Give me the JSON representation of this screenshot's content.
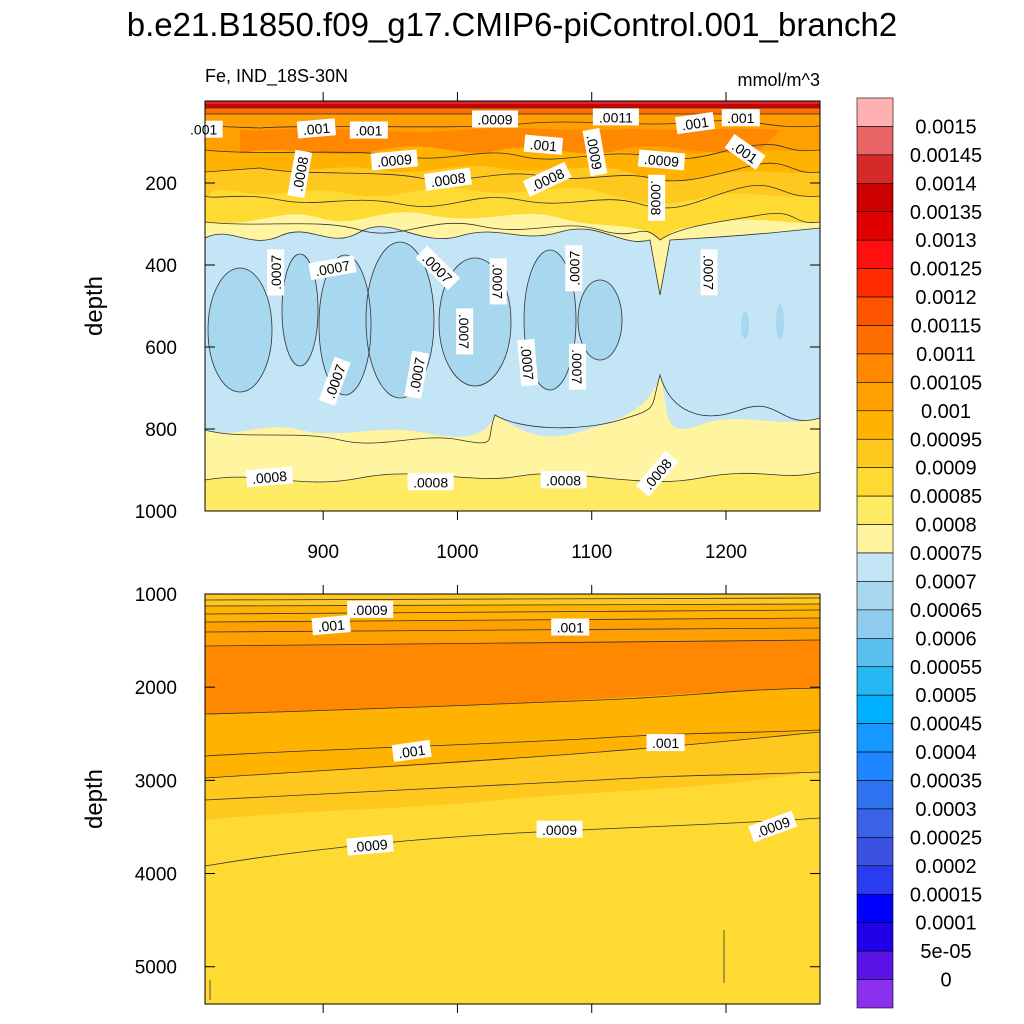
{
  "chart_data": {
    "type": "contour",
    "title": "b.e21.B1850.f09_g17.CMIP6-piControl.001_branch2",
    "variable_label": "Fe, IND_18S-30N",
    "units_label": "mmol/m^3",
    "x_ticks": [
      900,
      1000,
      1100,
      1200
    ],
    "x_range": [
      812,
      1270
    ],
    "panels": [
      {
        "name": "upper",
        "ylabel": "depth",
        "y_range": [
          0,
          1000
        ],
        "y_ticks": [
          200,
          400,
          600,
          800,
          1000
        ],
        "contour_labels": [
          {
            "text": ".0009",
            "x": 1028,
            "y": 45,
            "rot": 0
          },
          {
            "text": ".0011",
            "x": 1118,
            "y": 40,
            "rot": 0
          },
          {
            "text": ".001",
            "x": 1211,
            "y": 42,
            "rot": 0
          },
          {
            "text": ".001",
            "x": 1177,
            "y": 55,
            "rot": -8
          },
          {
            "text": ".001",
            "x": 811,
            "y": 70,
            "rot": 0
          },
          {
            "text": ".001",
            "x": 895,
            "y": 68,
            "rot": -5
          },
          {
            "text": ".001",
            "x": 934,
            "y": 72,
            "rot": 0
          },
          {
            "text": ".001",
            "x": 1064,
            "y": 108,
            "rot": 5
          },
          {
            "text": ".001",
            "x": 1214,
            "y": 125,
            "rot": 35
          },
          {
            "text": ".0009",
            "x": 1102,
            "y": 125,
            "rot": 80
          },
          {
            "text": ".0009",
            "x": 953,
            "y": 145,
            "rot": -5
          },
          {
            "text": ".0009",
            "x": 1152,
            "y": 145,
            "rot": 5
          },
          {
            "text": ".0008",
            "x": 883,
            "y": 178,
            "rot": -80
          },
          {
            "text": ".0008",
            "x": 993,
            "y": 192,
            "rot": -8
          },
          {
            "text": ".0008",
            "x": 1067,
            "y": 192,
            "rot": -25
          },
          {
            "text": ".0008",
            "x": 1148,
            "y": 236,
            "rot": 90
          },
          {
            "text": ".0007",
            "x": 865,
            "y": 418,
            "rot": -90
          },
          {
            "text": ".0007",
            "x": 907,
            "y": 408,
            "rot": -10
          },
          {
            "text": ".0007",
            "x": 985,
            "y": 408,
            "rot": 45
          },
          {
            "text": ".0007",
            "x": 1030,
            "y": 440,
            "rot": 90
          },
          {
            "text": ".0007",
            "x": 1087,
            "y": 408,
            "rot": -90
          },
          {
            "text": ".0007",
            "x": 1187,
            "y": 418,
            "rot": 90
          },
          {
            "text": ".0007",
            "x": 1005,
            "y": 562,
            "rot": 90
          },
          {
            "text": ".0007",
            "x": 1052,
            "y": 638,
            "rot": 85
          },
          {
            "text": ".0007",
            "x": 1089,
            "y": 648,
            "rot": 90
          },
          {
            "text": ".0007",
            "x": 970,
            "y": 668,
            "rot": -80
          },
          {
            "text": ".0007",
            "x": 909,
            "y": 684,
            "rot": -70
          },
          {
            "text": ".0008",
            "x": 860,
            "y": 918,
            "rot": -5
          },
          {
            "text": ".0008",
            "x": 980,
            "y": 930,
            "rot": 0
          },
          {
            "text": ".0008",
            "x": 1079,
            "y": 925,
            "rot": 0
          },
          {
            "text": ".0008",
            "x": 1149,
            "y": 910,
            "rot": -50
          }
        ]
      },
      {
        "name": "lower",
        "ylabel": "depth",
        "y_range": [
          1000,
          5400
        ],
        "y_ticks": [
          1000,
          2000,
          3000,
          4000,
          5000
        ],
        "contour_labels": [
          {
            "text": ".0009",
            "x": 935,
            "y": 1170,
            "rot": 0
          },
          {
            "text": ".001",
            "x": 906,
            "y": 1340,
            "rot": -5
          },
          {
            "text": ".001",
            "x": 1084,
            "y": 1360,
            "rot": 0
          },
          {
            "text": ".001",
            "x": 966,
            "y": 2690,
            "rot": -8
          },
          {
            "text": ".001",
            "x": 1155,
            "y": 2600,
            "rot": 0
          },
          {
            "text": ".0009",
            "x": 1076,
            "y": 3530,
            "rot": 0
          },
          {
            "text": ".0009",
            "x": 935,
            "y": 3700,
            "rot": -5
          },
          {
            "text": ".0009",
            "x": 1235,
            "y": 3500,
            "rot": -20
          }
        ]
      }
    ],
    "colorbar": {
      "labels": [
        "0.0015",
        "0.00145",
        "0.0014",
        "0.00135",
        "0.0013",
        "0.00125",
        "0.0012",
        "0.00115",
        "0.0011",
        "0.00105",
        "0.001",
        "0.00095",
        "0.0009",
        "0.00085",
        "0.0008",
        "0.00075",
        "0.0007",
        "0.00065",
        "0.0006",
        "0.00055",
        "0.0005",
        "0.00045",
        "0.0004",
        "0.00035",
        "0.0003",
        "0.00025",
        "0.0002",
        "0.00015",
        "0.0001",
        "5e-05",
        "0"
      ],
      "colors": [
        "#ffb1b1",
        "#e86565",
        "#d62a2a",
        "#cc0000",
        "#e00000",
        "#ff0f0f",
        "#ff2a00",
        "#ff5500",
        "#ff6f00",
        "#ff8800",
        "#ffa000",
        "#ffb200",
        "#ffc81e",
        "#ffda32",
        "#ffea64",
        "#fff5a0",
        "#c4e5f5",
        "#a8d8f0",
        "#8ecbee",
        "#5bc0f0",
        "#26b8f2",
        "#00b0ff",
        "#1698ff",
        "#1e86ff",
        "#2e72f0",
        "#3a63e8",
        "#3b52e0",
        "#2a3cf0",
        "#0000ff",
        "#2000e8",
        "#5a14e6",
        "#8a30ee"
      ]
    }
  }
}
